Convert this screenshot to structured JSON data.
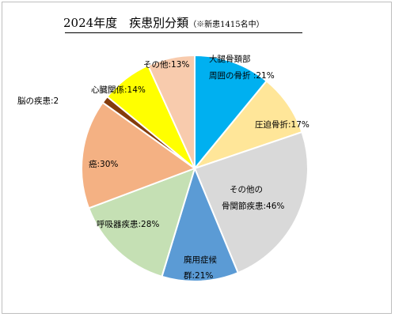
{
  "chart_data": {
    "type": "pie",
    "title": "2024年度　疾患別分類",
    "subtitle": "（※新患1415名中）",
    "categories": [
      "大腿骨頚部周囲の骨折",
      "圧迫骨折",
      "その他の骨関節疾患",
      "廃用症候群",
      "呼吸器疾患",
      "癌",
      "脳の疾患",
      "心臓関係",
      "その他"
    ],
    "values": [
      21,
      17,
      46,
      21,
      28,
      30,
      2,
      14,
      13
    ],
    "colors": [
      "#00b0f0",
      "#ffe699",
      "#d9d9d9",
      "#5b9bd5",
      "#c5e0b4",
      "#f4b183",
      "#843c0c",
      "#ffff00",
      "#f8cbad"
    ],
    "labels": [
      [
        "大腿骨頚部",
        "周囲の骨折 :21%"
      ],
      [
        "圧迫骨折:17%"
      ],
      [
        "その他の",
        "骨関節疾患:46%"
      ],
      [
        "廃用症候",
        "群:21%"
      ],
      [
        "呼吸器疾患:28%"
      ],
      [
        "癌:30%"
      ],
      [
        "脳の疾患:2"
      ],
      [
        "心臓関係:14%"
      ],
      [
        "その他:13%"
      ]
    ],
    "start_angle_deg": 0,
    "direction": "clockwise",
    "legend": "none"
  }
}
